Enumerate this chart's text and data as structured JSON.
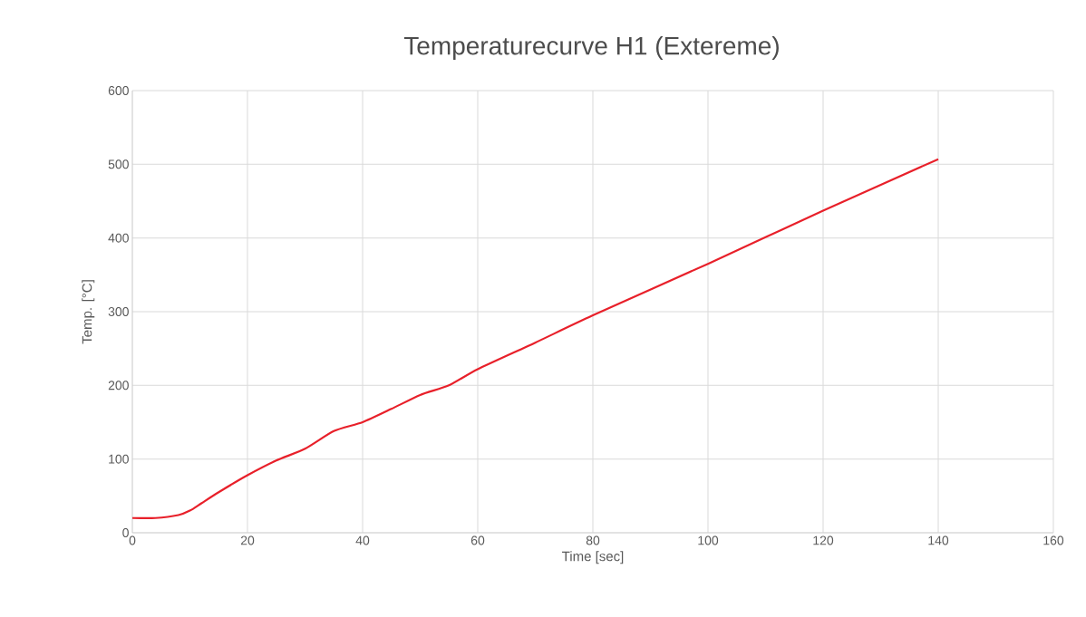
{
  "chart_data": {
    "type": "line",
    "title": "Temperaturecurve H1 (Extereme)",
    "xlabel": "Time [sec]",
    "ylabel": "Temp. [°C]",
    "x": [
      0,
      4,
      8,
      10,
      12,
      15,
      20,
      25,
      30,
      35,
      40,
      45,
      50,
      55,
      60,
      70,
      80,
      100,
      120,
      140
    ],
    "series": [
      {
        "color": "#e8202a",
        "values": [
          20,
          20,
          24,
          30,
          40,
          55,
          78,
          98,
          114,
          138,
          150,
          168,
          187,
          200,
          222,
          258,
          295,
          365,
          437,
          507
        ]
      }
    ],
    "xlim": [
      0,
      160
    ],
    "xticks": [
      0,
      20,
      40,
      60,
      80,
      100,
      120,
      140,
      160
    ],
    "ylim": [
      0,
      600
    ],
    "yticks": [
      0,
      100,
      200,
      300,
      400,
      500,
      600
    ],
    "grid": true,
    "marker": "none",
    "line_style": "solid"
  }
}
